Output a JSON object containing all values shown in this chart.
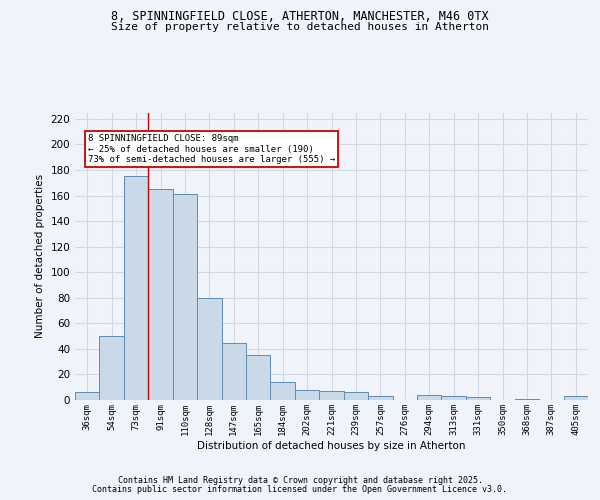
{
  "title_line1": "8, SPINNINGFIELD CLOSE, ATHERTON, MANCHESTER, M46 0TX",
  "title_line2": "Size of property relative to detached houses in Atherton",
  "xlabel": "Distribution of detached houses by size in Atherton",
  "ylabel": "Number of detached properties",
  "categories": [
    "36sqm",
    "54sqm",
    "73sqm",
    "91sqm",
    "110sqm",
    "128sqm",
    "147sqm",
    "165sqm",
    "184sqm",
    "202sqm",
    "221sqm",
    "239sqm",
    "257sqm",
    "276sqm",
    "294sqm",
    "313sqm",
    "331sqm",
    "350sqm",
    "368sqm",
    "387sqm",
    "405sqm"
  ],
  "values": [
    6,
    50,
    175,
    165,
    161,
    80,
    45,
    35,
    14,
    8,
    7,
    6,
    3,
    0,
    4,
    3,
    2,
    0,
    1,
    0,
    3
  ],
  "bar_color": "#c9d9e8",
  "bar_edge_color": "#5b8db8",
  "grid_color": "#d0d8e8",
  "background_color": "#f0f4fa",
  "red_line_x": 2.5,
  "annotation_text": "8 SPINNINGFIELD CLOSE: 89sqm\n← 25% of detached houses are smaller (190)\n73% of semi-detached houses are larger (555) →",
  "annotation_box_color": "#ffffff",
  "annotation_box_edge": "#cc0000",
  "ylim": [
    0,
    225
  ],
  "yticks": [
    0,
    20,
    40,
    60,
    80,
    100,
    120,
    140,
    160,
    180,
    200,
    220
  ],
  "footer_line1": "Contains HM Land Registry data © Crown copyright and database right 2025.",
  "footer_line2": "Contains public sector information licensed under the Open Government Licence v3.0."
}
